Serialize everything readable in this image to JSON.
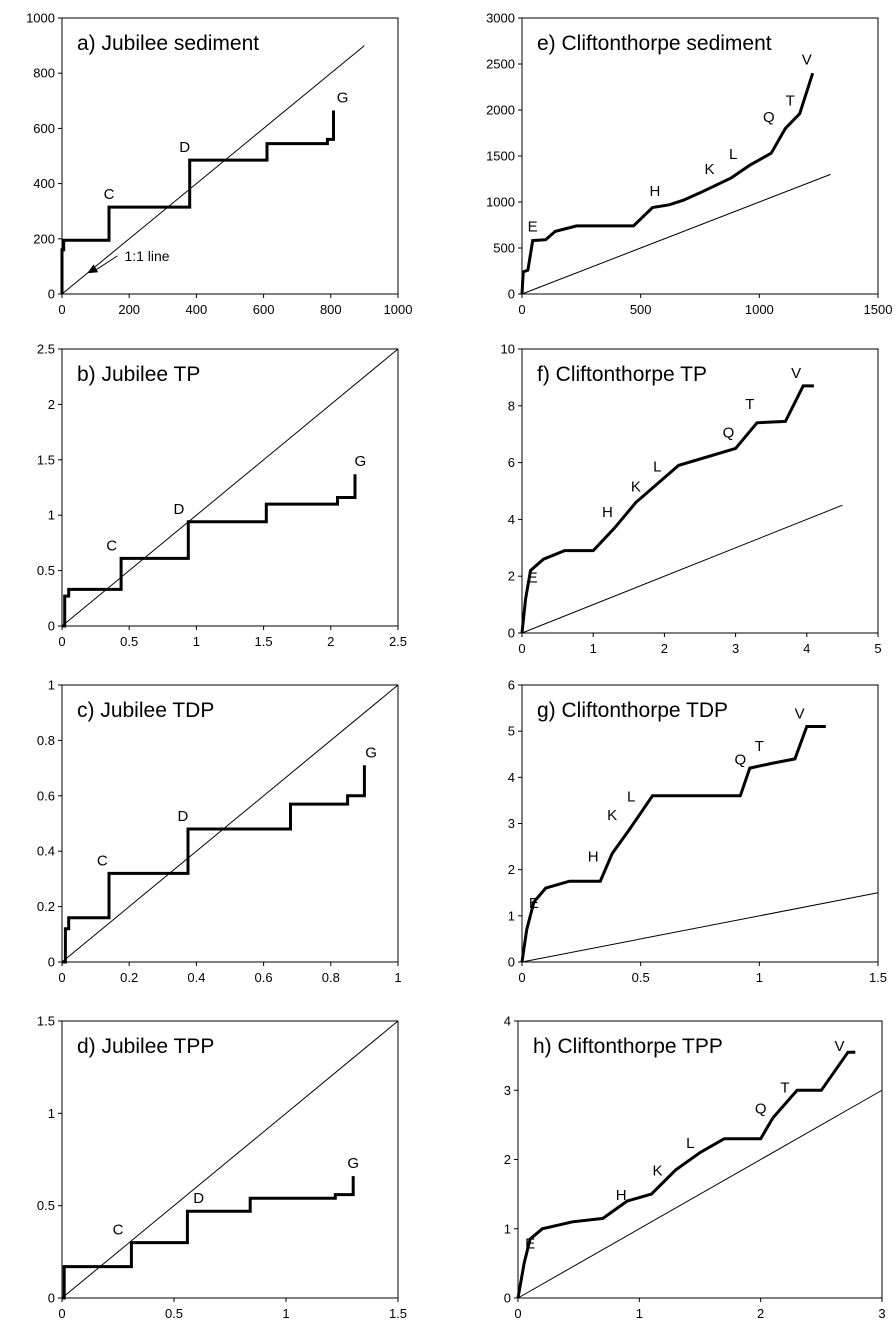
{
  "figure": {
    "annotation_text": "1:1 line"
  },
  "chart_data": [
    {
      "type": "line",
      "title": "a) Jubilee sediment",
      "xlim": [
        0,
        1000
      ],
      "ylim": [
        0,
        1000
      ],
      "xticks": [
        0,
        200,
        400,
        600,
        800,
        1000
      ],
      "yticks": [
        0,
        200,
        400,
        600,
        800,
        1000
      ],
      "xtick_labels": [
        "0",
        "200",
        "400",
        "600",
        "800",
        "1000"
      ],
      "ytick_labels": [
        "0",
        "200",
        "400",
        "600",
        "800",
        "1000"
      ],
      "reference_line": [
        [
          0,
          0
        ],
        [
          900,
          900
        ]
      ],
      "series": [
        {
          "x": [
            0,
            0,
            5,
            5,
            140,
            140,
            380,
            380,
            610,
            610,
            790,
            790,
            808,
            808
          ],
          "y": [
            0,
            160,
            160,
            195,
            195,
            315,
            315,
            485,
            485,
            545,
            545,
            560,
            560,
            665
          ]
        }
      ],
      "point_labels": [
        {
          "text": "C",
          "x": 140,
          "y": 315
        },
        {
          "text": "D",
          "x": 365,
          "y": 485
        },
        {
          "text": "G",
          "x": 835,
          "y": 665
        }
      ],
      "annotation": {
        "text": "1:1 line",
        "x": 290,
        "y": 120,
        "arrow_to": [
          75,
          75
        ]
      }
    },
    {
      "type": "line",
      "title": "b) Jubilee TP",
      "xlim": [
        0,
        2.5
      ],
      "ylim": [
        0,
        2.5
      ],
      "xticks": [
        0,
        0.5,
        1,
        1.5,
        2,
        2.5
      ],
      "yticks": [
        0,
        0.5,
        1,
        1.5,
        2,
        2.5
      ],
      "xtick_labels": [
        "0",
        "0.5",
        "1",
        "1.5",
        "2",
        "2.5"
      ],
      "ytick_labels": [
        "0",
        "0.5",
        "1",
        "1.5",
        "2",
        "2.5"
      ],
      "reference_line": [
        [
          0,
          0
        ],
        [
          2.5,
          2.5
        ]
      ],
      "series": [
        {
          "x": [
            0,
            0.02,
            0.02,
            0.05,
            0.05,
            0.44,
            0.44,
            0.94,
            0.94,
            1.52,
            1.52,
            2.05,
            2.05,
            2.18,
            2.18
          ],
          "y": [
            0,
            0,
            0.27,
            0.27,
            0.33,
            0.33,
            0.61,
            0.61,
            0.94,
            0.94,
            1.1,
            1.1,
            1.16,
            1.16,
            1.37
          ]
        }
      ],
      "point_labels": [
        {
          "text": "C",
          "x": 0.37,
          "y": 0.61
        },
        {
          "text": "D",
          "x": 0.87,
          "y": 0.94
        },
        {
          "text": "G",
          "x": 2.22,
          "y": 1.37
        }
      ]
    },
    {
      "type": "line",
      "title": "c) Jubilee TDP",
      "xlim": [
        0,
        1
      ],
      "ylim": [
        0,
        1
      ],
      "xticks": [
        0,
        0.2,
        0.4,
        0.6,
        0.8,
        1
      ],
      "yticks": [
        0,
        0.2,
        0.4,
        0.6,
        0.8,
        1
      ],
      "xtick_labels": [
        "0",
        "0.2",
        "0.4",
        "0.6",
        "0.8",
        "1"
      ],
      "ytick_labels": [
        "0",
        "0.2",
        "0.4",
        "0.6",
        "0.8",
        "1"
      ],
      "reference_line": [
        [
          0,
          0
        ],
        [
          1,
          1
        ]
      ],
      "series": [
        {
          "x": [
            0,
            0.01,
            0.01,
            0.02,
            0.02,
            0.14,
            0.14,
            0.375,
            0.375,
            0.68,
            0.68,
            0.85,
            0.85,
            0.9,
            0.9
          ],
          "y": [
            0,
            0,
            0.12,
            0.12,
            0.16,
            0.16,
            0.32,
            0.32,
            0.48,
            0.48,
            0.57,
            0.57,
            0.6,
            0.6,
            0.71
          ]
        }
      ],
      "point_labels": [
        {
          "text": "C",
          "x": 0.12,
          "y": 0.32
        },
        {
          "text": "D",
          "x": 0.36,
          "y": 0.48
        },
        {
          "text": "G",
          "x": 0.92,
          "y": 0.71
        }
      ]
    },
    {
      "type": "line",
      "title": "d) Jubilee TPP",
      "xlim": [
        0,
        1.5
      ],
      "ylim": [
        0,
        1.5
      ],
      "xticks": [
        0,
        0.5,
        1,
        1.5
      ],
      "yticks": [
        0,
        0.5,
        1,
        1.5
      ],
      "xtick_labels": [
        "0",
        "0.5",
        "1",
        "1.5"
      ],
      "ytick_labels": [
        "0",
        "0.5",
        "1",
        "1.5"
      ],
      "reference_line": [
        [
          0,
          0
        ],
        [
          1.5,
          1.5
        ]
      ],
      "series": [
        {
          "x": [
            0,
            0.01,
            0.01,
            0.31,
            0.31,
            0.56,
            0.56,
            0.84,
            0.84,
            1.22,
            1.22,
            1.3,
            1.3
          ],
          "y": [
            0,
            0,
            0.17,
            0.17,
            0.3,
            0.3,
            0.47,
            0.47,
            0.54,
            0.54,
            0.56,
            0.56,
            0.66
          ]
        }
      ],
      "point_labels": [
        {
          "text": "C",
          "x": 0.25,
          "y": 0.3
        },
        {
          "text": "D",
          "x": 0.61,
          "y": 0.47
        },
        {
          "text": "G",
          "x": 1.3,
          "y": 0.66
        }
      ]
    },
    {
      "type": "line",
      "title": "e) Cliftonthorpe sediment",
      "xlim": [
        0,
        1500
      ],
      "ylim": [
        0,
        3000
      ],
      "xticks": [
        0,
        500,
        1000,
        1500
      ],
      "yticks": [
        0,
        500,
        1000,
        1500,
        2000,
        2500,
        3000
      ],
      "xtick_labels": [
        "0",
        "500",
        "1000",
        "1500"
      ],
      "ytick_labels": [
        "0",
        "500",
        "1000",
        "1500",
        "2000",
        "2500",
        "3000"
      ],
      "reference_line": [
        [
          0,
          0
        ],
        [
          1300,
          1300
        ]
      ],
      "series": [
        {
          "x": [
            0,
            5,
            25,
            45,
            100,
            140,
            230,
            470,
            550,
            620,
            680,
            750,
            880,
            960,
            1050,
            1110,
            1170,
            1200,
            1225
          ],
          "y": [
            0,
            240,
            260,
            580,
            590,
            680,
            740,
            740,
            940,
            970,
            1020,
            1100,
            1260,
            1400,
            1530,
            1800,
            1960,
            2200,
            2400
          ]
        }
      ],
      "point_labels": [
        {
          "text": "E",
          "x": 45,
          "y": 590
        },
        {
          "text": "H",
          "x": 560,
          "y": 980
        },
        {
          "text": "K",
          "x": 790,
          "y": 1220
        },
        {
          "text": "L",
          "x": 890,
          "y": 1380
        },
        {
          "text": "Q",
          "x": 1040,
          "y": 1780
        },
        {
          "text": "T",
          "x": 1130,
          "y": 1960
        },
        {
          "text": "V",
          "x": 1200,
          "y": 2410
        }
      ]
    },
    {
      "type": "line",
      "title": "f) Cliftonthorpe TP",
      "xlim": [
        0,
        5
      ],
      "ylim": [
        0,
        10
      ],
      "xticks": [
        0,
        1,
        2,
        3,
        4,
        5
      ],
      "yticks": [
        0,
        2,
        4,
        6,
        8,
        10
      ],
      "xtick_labels": [
        "0",
        "1",
        "2",
        "3",
        "4",
        "5"
      ],
      "ytick_labels": [
        "0",
        "2",
        "4",
        "6",
        "8",
        "10"
      ],
      "reference_line": [
        [
          0,
          0
        ],
        [
          4.5,
          4.5
        ]
      ],
      "series": [
        {
          "x": [
            0,
            0.05,
            0.12,
            0.3,
            0.6,
            1.0,
            1.3,
            1.6,
            2.2,
            3.0,
            3.3,
            3.7,
            3.95,
            4.1
          ],
          "y": [
            0,
            1.2,
            2.2,
            2.6,
            2.9,
            2.9,
            3.7,
            4.6,
            5.9,
            6.5,
            7.4,
            7.45,
            8.7,
            8.7
          ]
        }
      ],
      "point_labels": [
        {
          "text": "E",
          "x": 0.15,
          "y": 1.5
        },
        {
          "text": "H",
          "x": 1.2,
          "y": 3.8
        },
        {
          "text": "K",
          "x": 1.6,
          "y": 4.7
        },
        {
          "text": "L",
          "x": 1.9,
          "y": 5.4
        },
        {
          "text": "Q",
          "x": 2.9,
          "y": 6.6
        },
        {
          "text": "T",
          "x": 3.2,
          "y": 7.6
        },
        {
          "text": "V",
          "x": 3.85,
          "y": 8.7
        }
      ]
    },
    {
      "type": "line",
      "title": "g) Cliftonthorpe TDP",
      "xlim": [
        0,
        1.5
      ],
      "ylim": [
        0,
        6
      ],
      "xticks": [
        0,
        0.5,
        1,
        1.5
      ],
      "yticks": [
        0,
        1,
        2,
        3,
        4,
        5,
        6
      ],
      "xtick_labels": [
        "0",
        "0.5",
        "1",
        "1.5"
      ],
      "ytick_labels": [
        "0",
        "1",
        "2",
        "3",
        "4",
        "5",
        "6"
      ],
      "reference_line": [
        [
          0,
          0
        ],
        [
          1.5,
          1.5
        ]
      ],
      "series": [
        {
          "x": [
            0,
            0.02,
            0.05,
            0.1,
            0.2,
            0.33,
            0.38,
            0.45,
            0.55,
            0.92,
            0.96,
            1.05,
            1.15,
            1.2,
            1.28
          ],
          "y": [
            0,
            0.7,
            1.3,
            1.6,
            1.75,
            1.75,
            2.35,
            2.85,
            3.6,
            3.6,
            4.2,
            4.3,
            4.4,
            5.1,
            5.1
          ]
        }
      ],
      "point_labels": [
        {
          "text": "E",
          "x": 0.05,
          "y": 1.0
        },
        {
          "text": "H",
          "x": 0.3,
          "y": 2.0
        },
        {
          "text": "K",
          "x": 0.38,
          "y": 2.9
        },
        {
          "text": "L",
          "x": 0.46,
          "y": 3.3
        },
        {
          "text": "Q",
          "x": 0.92,
          "y": 4.1
        },
        {
          "text": "T",
          "x": 1.0,
          "y": 4.4
        },
        {
          "text": "V",
          "x": 1.17,
          "y": 5.1
        }
      ]
    },
    {
      "type": "line",
      "title": "h) Cliftonthorpe TPP",
      "xlim": [
        0,
        3
      ],
      "ylim": [
        0,
        4
      ],
      "xticks": [
        0,
        1,
        2,
        3
      ],
      "yticks": [
        0,
        1,
        2,
        3,
        4
      ],
      "xtick_labels": [
        "0",
        "1",
        "2",
        "3"
      ],
      "ytick_labels": [
        "0",
        "1",
        "2",
        "3",
        "4"
      ],
      "reference_line": [
        [
          0,
          0
        ],
        [
          3,
          3
        ]
      ],
      "series": [
        {
          "x": [
            0,
            0.05,
            0.1,
            0.2,
            0.45,
            0.7,
            0.9,
            1.1,
            1.3,
            1.5,
            1.7,
            2.0,
            2.1,
            2.3,
            2.5,
            2.72,
            2.78
          ],
          "y": [
            0,
            0.5,
            0.85,
            1.0,
            1.1,
            1.15,
            1.4,
            1.5,
            1.85,
            2.1,
            2.3,
            2.3,
            2.6,
            3.0,
            3.0,
            3.55,
            3.55
          ]
        }
      ],
      "point_labels": [
        {
          "text": "E",
          "x": 0.1,
          "y": 0.6
        },
        {
          "text": "H",
          "x": 0.85,
          "y": 1.3
        },
        {
          "text": "K",
          "x": 1.15,
          "y": 1.65
        },
        {
          "text": "L",
          "x": 1.42,
          "y": 2.05
        },
        {
          "text": "Q",
          "x": 2.0,
          "y": 2.55
        },
        {
          "text": "T",
          "x": 2.2,
          "y": 2.85
        },
        {
          "text": "V",
          "x": 2.65,
          "y": 3.45
        }
      ]
    }
  ]
}
